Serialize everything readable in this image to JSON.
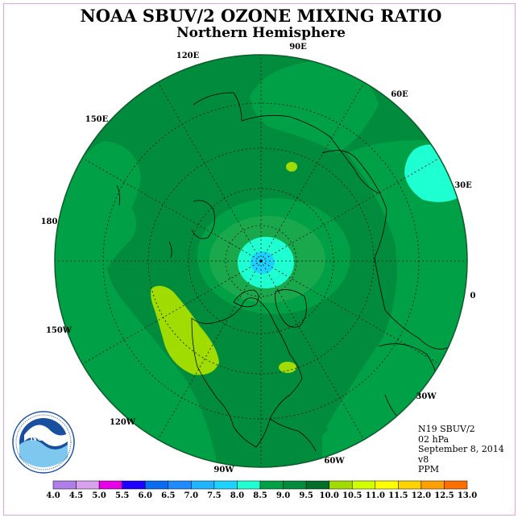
{
  "title": "NOAA SBUV/2 OZONE MIXING RATIO",
  "subtitle": "Northern Hemisphere",
  "longitude_labels": [
    "90E",
    "60E",
    "30E",
    "0",
    "30W",
    "60W",
    "90W",
    "120W",
    "150W",
    "180",
    "150E",
    "120E"
  ],
  "info": {
    "satellite": "N19 SBUV/2",
    "level": "02 hPa",
    "date": "September 8, 2014",
    "version": "v8",
    "units": "PPM"
  },
  "colorbar": {
    "ticks": [
      "4.0",
      "4.5",
      "5.0",
      "5.5",
      "6.0",
      "6.5",
      "7.0",
      "7.5",
      "8.0",
      "8.5",
      "9.0",
      "9.5",
      "10.0",
      "10.5",
      "11.0",
      "11.5",
      "12.0",
      "12.5",
      "13.0"
    ],
    "colors": [
      "#b07ee8",
      "#d9a2ef",
      "#e800e8",
      "#1e00ff",
      "#0a6cf0",
      "#1e8cff",
      "#1eb4ff",
      "#1ed2ff",
      "#1effd2",
      "#00a046",
      "#008c3c",
      "#006e28",
      "#a0dc00",
      "#d2ff00",
      "#ffff00",
      "#ffd200",
      "#ffa000",
      "#ff6e00",
      "#ff0000",
      "#e60000",
      "#8c5032"
    ]
  },
  "logo": {
    "name": "NOAA",
    "ring_text": "NATIONAL OCEANIC AND ATMOSPHERIC ADMINISTRATION · U.S. DEPARTMENT OF COMMERCE"
  },
  "colors": {
    "ozone_8_0": "#00a046",
    "ozone_8_5": "#008c3c",
    "ozone_9_0": "#006e28",
    "ozone_9_5": "#a0dc00",
    "ozone_7_5": "#1effd2",
    "ozone_7_0": "#1ed2ff"
  }
}
